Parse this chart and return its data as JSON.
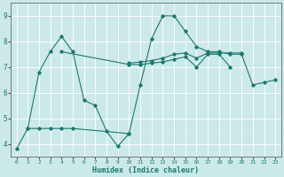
{
  "xlabel": "Humidex (Indice chaleur)",
  "xlim": [
    -0.5,
    23.5
  ],
  "ylim": [
    3.5,
    9.5
  ],
  "xticks": [
    0,
    1,
    2,
    3,
    4,
    5,
    6,
    7,
    8,
    9,
    10,
    11,
    12,
    13,
    14,
    15,
    16,
    17,
    18,
    19,
    20,
    21,
    22,
    23
  ],
  "yticks": [
    4,
    5,
    6,
    7,
    8,
    9
  ],
  "bg_color": "#cce9e9",
  "grid_color": "#ffffff",
  "line_color": "#1a7a6e",
  "line1": [
    3.8,
    4.6,
    6.8,
    7.6,
    8.2,
    7.6,
    5.7,
    5.5,
    4.5,
    3.9,
    4.4,
    6.3,
    8.1,
    9.0,
    9.0,
    8.4,
    7.8,
    7.6,
    7.6,
    7.5,
    7.5,
    6.3,
    6.4,
    6.5
  ],
  "line2_x": [
    4,
    10,
    11,
    12,
    13,
    14,
    15,
    16,
    17,
    18,
    19
  ],
  "line2_y": [
    7.6,
    7.1,
    7.1,
    7.15,
    7.2,
    7.3,
    7.4,
    7.0,
    7.5,
    7.5,
    7.0
  ],
  "line3_x": [
    10,
    11,
    12,
    13,
    14,
    15,
    16,
    17,
    18,
    19,
    20
  ],
  "line3_y": [
    7.15,
    7.2,
    7.25,
    7.35,
    7.5,
    7.55,
    7.35,
    7.55,
    7.55,
    7.55,
    7.55
  ],
  "line4_x": [
    1,
    2,
    3,
    4,
    5,
    10
  ],
  "line4_y": [
    4.6,
    4.6,
    4.6,
    4.6,
    4.6,
    4.4
  ]
}
